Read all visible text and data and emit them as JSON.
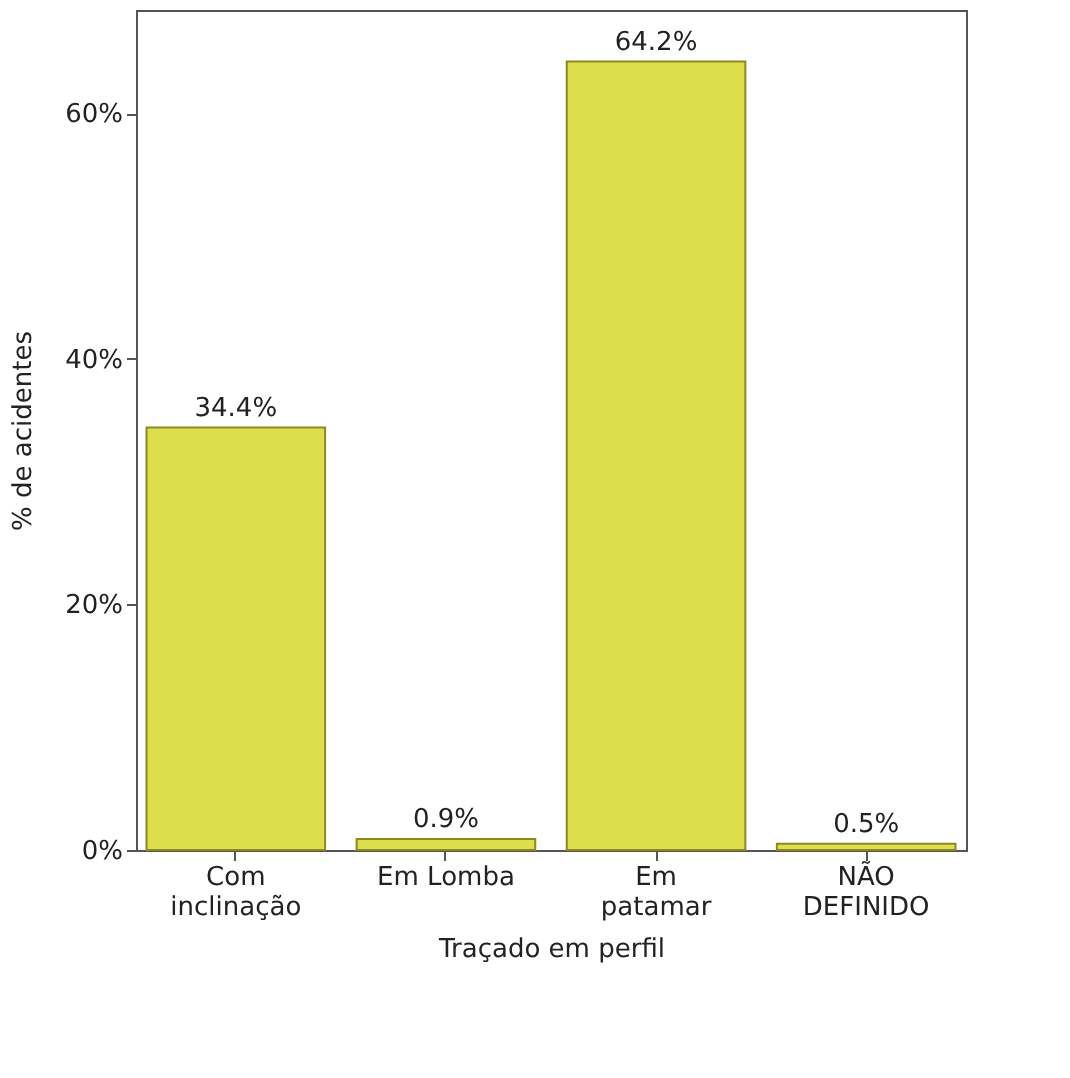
{
  "chart_data": {
    "type": "bar",
    "xlabel": "Traçado em perfil",
    "ylabel": "% de acidentes",
    "categories": [
      "Com\ninclinação",
      "Em Lomba",
      "Em\npatamar",
      "NÃO\nDEFINIDO"
    ],
    "values": [
      34.4,
      0.9,
      64.2,
      0.5
    ],
    "value_labels": [
      "34.4%",
      "0.9%",
      "64.2%",
      "0.5%"
    ],
    "color": "#dede4c",
    "ylim": [
      0,
      68.4
    ],
    "yticks": [
      {
        "value": 0,
        "label": "0%"
      },
      {
        "value": 20,
        "label": "20%"
      },
      {
        "value": 40,
        "label": "40%"
      },
      {
        "value": 60,
        "label": "60%"
      }
    ],
    "grid": false
  }
}
